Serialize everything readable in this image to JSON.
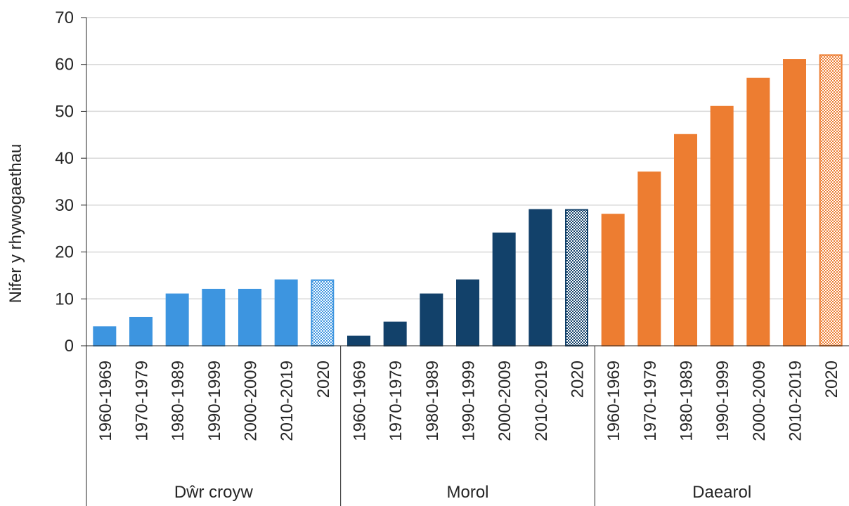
{
  "chart_data": {
    "type": "bar",
    "title": "",
    "ylabel": "Nifer y rhywogaethau",
    "xlabel": "",
    "ylim": [
      0,
      70
    ],
    "yticks": [
      0,
      10,
      20,
      30,
      40,
      50,
      60,
      70
    ],
    "grid": true,
    "legend": "none",
    "groups": [
      {
        "name": "Dŵr croyw",
        "color": "#3d95e0",
        "categories": [
          "1960-1969",
          "1970-1979",
          "1980-1989",
          "1990-1999",
          "2000-2009",
          "2010-2019",
          "2020"
        ],
        "values": [
          4,
          6,
          11,
          12,
          12,
          14,
          14
        ],
        "patterned": [
          false,
          false,
          false,
          false,
          false,
          false,
          true
        ]
      },
      {
        "name": "Morol",
        "color": "#12416a",
        "categories": [
          "1960-1969",
          "1970-1979",
          "1980-1989",
          "1990-1999",
          "2000-2009",
          "2010-2019",
          "2020"
        ],
        "values": [
          2,
          5,
          11,
          14,
          24,
          29,
          29
        ],
        "patterned": [
          false,
          false,
          false,
          false,
          false,
          false,
          true
        ]
      },
      {
        "name": "Daearol",
        "color": "#ed7d31",
        "categories": [
          "1960-1969",
          "1970-1979",
          "1980-1989",
          "1990-1999",
          "2000-2009",
          "2010-2019",
          "2020"
        ],
        "values": [
          28,
          37,
          45,
          51,
          57,
          61,
          62
        ],
        "patterned": [
          false,
          false,
          false,
          false,
          false,
          false,
          true
        ]
      }
    ]
  }
}
